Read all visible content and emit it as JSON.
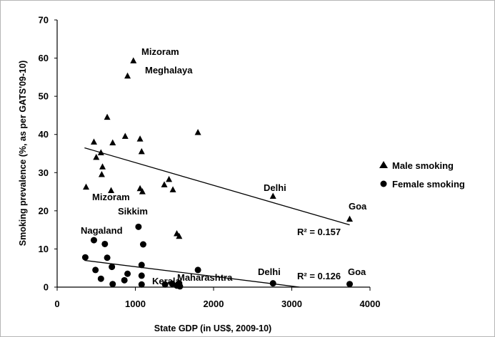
{
  "chart_data": {
    "type": "scatter",
    "xlabel": "State GDP (in US$, 2009-10)",
    "ylabel": "Smoking prevalence (%,  as per GATS'09-10)",
    "xlim": [
      0,
      4000
    ],
    "ylim": [
      0,
      70
    ],
    "x_ticks": [
      "0",
      "1000",
      "2000",
      "3000",
      "4000"
    ],
    "y_ticks": [
      "0",
      "10",
      "20",
      "30",
      "40",
      "50",
      "60",
      "70"
    ],
    "grid": false,
    "legend_position": "right",
    "series": [
      {
        "name": "Male smoking",
        "marker": "triangle",
        "color": "#000000",
        "points": [
          [
            975,
            59.3
          ],
          [
            900,
            55.3
          ],
          [
            640,
            44.5
          ],
          [
            1800,
            40.5
          ],
          [
            870,
            39.5
          ],
          [
            1060,
            38.8
          ],
          [
            470,
            38.0
          ],
          [
            710,
            37.8
          ],
          [
            1080,
            35.5
          ],
          [
            560,
            35.2
          ],
          [
            500,
            34.0
          ],
          [
            580,
            31.5
          ],
          [
            570,
            29.5
          ],
          [
            1430,
            28.2
          ],
          [
            1370,
            26.8
          ],
          [
            370,
            26.2
          ],
          [
            1480,
            25.5
          ],
          [
            1060,
            25.8
          ],
          [
            690,
            25.3
          ],
          [
            1090,
            25.0
          ],
          [
            2760,
            23.8
          ],
          [
            1530,
            14.0
          ],
          [
            1560,
            13.3
          ],
          [
            3740,
            17.8
          ]
        ],
        "trendline": {
          "x": [
            350,
            3740
          ],
          "y": [
            36.5,
            16.3
          ],
          "r2_label": "R² = 0.157"
        }
      },
      {
        "name": "Female smoking",
        "marker": "circle",
        "color": "#000000",
        "points": [
          [
            1040,
            15.8
          ],
          [
            470,
            12.3
          ],
          [
            610,
            11.3
          ],
          [
            1100,
            11.2
          ],
          [
            360,
            7.8
          ],
          [
            640,
            7.7
          ],
          [
            1080,
            5.8
          ],
          [
            700,
            5.3
          ],
          [
            490,
            4.5
          ],
          [
            1800,
            4.5
          ],
          [
            900,
            3.5
          ],
          [
            1080,
            3.0
          ],
          [
            560,
            2.2
          ],
          [
            860,
            1.8
          ],
          [
            710,
            0.8
          ],
          [
            1080,
            0.7
          ],
          [
            1380,
            0.7
          ],
          [
            1470,
            0.9
          ],
          [
            1530,
            0.4
          ],
          [
            1560,
            1.0
          ],
          [
            1570,
            0.2
          ],
          [
            2760,
            1.0
          ],
          [
            3740,
            0.8
          ]
        ],
        "trendline": {
          "x": [
            350,
            3100
          ],
          "y": [
            7.0,
            0.0
          ],
          "r2_label": "R² = 0.126"
        }
      }
    ],
    "annotations": [
      "Mizoram",
      "Meghalaya",
      "Delhi",
      "Goa",
      "Mizoram",
      "Sikkim",
      "Nagaland",
      "Kerala",
      "Maharashtra",
      "Delhi",
      "Goa"
    ]
  }
}
